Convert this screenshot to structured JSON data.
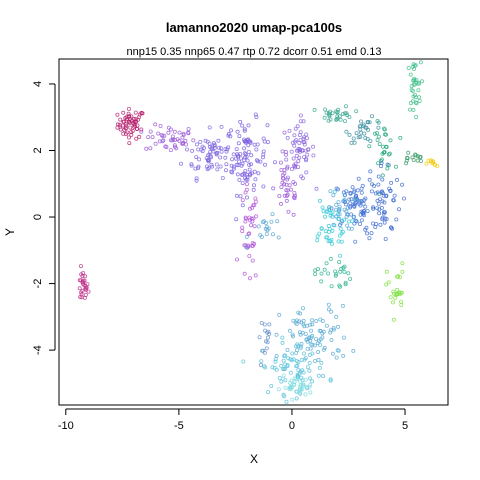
{
  "chart_data": {
    "type": "scatter",
    "title": "lamanno2020 umap-pca100s",
    "subtitle": "nnp15 0.35 nnp65 0.47 rtp 0.72 dcorr 0.51 emd 0.13",
    "xlabel": "X",
    "ylabel": "Y",
    "xlim": [
      -10.3,
      6.9
    ],
    "ylim": [
      -5.65,
      4.75
    ],
    "xticks": [
      -10,
      -5,
      0,
      5
    ],
    "yticks": [
      -4,
      -2,
      0,
      2,
      4
    ],
    "grid": false,
    "legend": "none",
    "marker": "open-circle",
    "clusters": [
      {
        "color": "#b5206e",
        "center": [
          -7.1,
          2.8
        ],
        "spread": [
          0.3,
          0.22
        ],
        "count": 60
      },
      {
        "color": "#c0308a",
        "center": [
          -9.25,
          -2.1
        ],
        "spread": [
          0.12,
          0.25
        ],
        "count": 28
      },
      {
        "color": "#9a5ad8",
        "center": [
          -5.4,
          2.35
        ],
        "spread": [
          0.55,
          0.2
        ],
        "count": 45
      },
      {
        "color": "#8066e0",
        "center": [
          -3.6,
          1.9
        ],
        "spread": [
          0.6,
          0.35
        ],
        "count": 70
      },
      {
        "color": "#7a5ee0",
        "center": [
          -2.0,
          1.8
        ],
        "spread": [
          0.45,
          0.55
        ],
        "count": 95
      },
      {
        "color": "#8c66de",
        "center": [
          0.3,
          2.0
        ],
        "spread": [
          0.35,
          0.45
        ],
        "count": 60
      },
      {
        "color": "#9a55d6",
        "center": [
          -0.2,
          0.9
        ],
        "spread": [
          0.3,
          0.5
        ],
        "count": 35
      },
      {
        "color": "#b055d8",
        "center": [
          -1.9,
          -0.6
        ],
        "spread": [
          0.2,
          0.75
        ],
        "count": 40
      },
      {
        "color": "#5aa8d2",
        "center": [
          -1.0,
          -0.4
        ],
        "spread": [
          0.45,
          0.2
        ],
        "count": 18
      },
      {
        "color": "#3aa890",
        "center": [
          2.0,
          3.1
        ],
        "spread": [
          0.35,
          0.12
        ],
        "count": 30
      },
      {
        "color": "#3a8ea0",
        "center": [
          3.3,
          2.6
        ],
        "spread": [
          0.4,
          0.18
        ],
        "count": 28
      },
      {
        "color": "#20a880",
        "center": [
          4.0,
          2.1
        ],
        "spread": [
          0.25,
          0.35
        ],
        "count": 30
      },
      {
        "color": "#3a9a66",
        "center": [
          5.3,
          1.75
        ],
        "spread": [
          0.3,
          0.12
        ],
        "count": 14
      },
      {
        "color": "#40c088",
        "center": [
          5.4,
          3.9
        ],
        "spread": [
          0.15,
          0.4
        ],
        "count": 35
      },
      {
        "color": "#f2cc10",
        "center": [
          6.2,
          1.6
        ],
        "spread": [
          0.12,
          0.08
        ],
        "count": 10
      },
      {
        "color": "#4474d4",
        "center": [
          2.9,
          0.4
        ],
        "spread": [
          0.55,
          0.4
        ],
        "count": 70
      },
      {
        "color": "#3f6ad0",
        "center": [
          4.0,
          0.5
        ],
        "spread": [
          0.4,
          0.6
        ],
        "count": 60
      },
      {
        "color": "#30c8d4",
        "center": [
          1.6,
          -0.3
        ],
        "spread": [
          0.45,
          0.45
        ],
        "count": 45
      },
      {
        "color": "#58a8d8",
        "center": [
          2.2,
          0.2
        ],
        "spread": [
          0.3,
          0.3
        ],
        "count": 25
      },
      {
        "color": "#2ab490",
        "center": [
          1.8,
          -1.7
        ],
        "spread": [
          0.4,
          0.25
        ],
        "count": 25
      },
      {
        "color": "#80e040",
        "center": [
          4.6,
          -2.2
        ],
        "spread": [
          0.2,
          0.4
        ],
        "count": 25
      },
      {
        "color": "#5aaad2",
        "center": [
          1.0,
          -3.6
        ],
        "spread": [
          0.75,
          0.45
        ],
        "count": 80
      },
      {
        "color": "#58c0d8",
        "center": [
          0.1,
          -4.5
        ],
        "spread": [
          0.75,
          0.4
        ],
        "count": 80
      },
      {
        "color": "#80dce0",
        "center": [
          0.2,
          -5.1
        ],
        "spread": [
          0.35,
          0.15
        ],
        "count": 35
      },
      {
        "color": "#6a90c8",
        "center": [
          -1.1,
          -3.6
        ],
        "spread": [
          0.2,
          0.3
        ],
        "count": 15
      }
    ]
  }
}
